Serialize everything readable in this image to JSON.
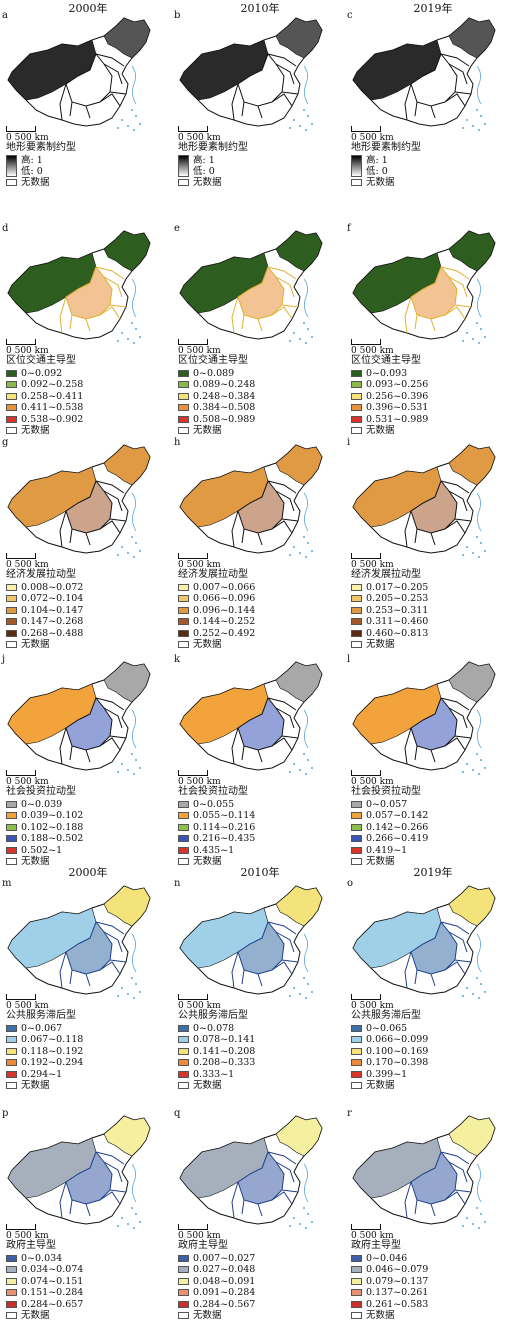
{
  "years": [
    "2000年",
    "2010年",
    "2019年"
  ],
  "map_scale": "0 500 km",
  "no_data": "无数据",
  "rows": [
    {
      "title": "地形要素制约型",
      "gradient": true,
      "high": "高: 1",
      "low": "低: 0",
      "panels": [
        {
          "letter": "a",
          "classes": []
        },
        {
          "letter": "b",
          "classes": []
        },
        {
          "letter": "c",
          "classes": []
        }
      ]
    },
    {
      "title": "区位交通主导型",
      "colors": [
        "#2e5e1f",
        "#8ab84a",
        "#f3e37a",
        "#e8913a",
        "#d7342a"
      ],
      "panels": [
        {
          "letter": "d",
          "classes": [
            "0~0.092",
            "0.092~0.258",
            "0.258~0.411",
            "0.411~0.538",
            "0.538~0.902"
          ]
        },
        {
          "letter": "e",
          "classes": [
            "0~0.089",
            "0.089~0.248",
            "0.248~0.384",
            "0.384~0.508",
            "0.508~0.989"
          ]
        },
        {
          "letter": "f",
          "classes": [
            "0~0.093",
            "0.093~0.256",
            "0.256~0.396",
            "0.396~0.531",
            "0.531~0.989"
          ]
        }
      ]
    },
    {
      "title": "经济发展拉动型",
      "colors": [
        "#f7f0a6",
        "#f2c66a",
        "#e09a43",
        "#a35a2b",
        "#5a2a12"
      ],
      "panels": [
        {
          "letter": "g",
          "classes": [
            "0.008~0.072",
            "0.072~0.104",
            "0.104~0.147",
            "0.147~0.268",
            "0.268~0.488"
          ]
        },
        {
          "letter": "h",
          "classes": [
            "0.007~0.066",
            "0.066~0.096",
            "0.096~0.144",
            "0.144~0.252",
            "0.252~0.492"
          ]
        },
        {
          "letter": "i",
          "classes": [
            "0.017~0.205",
            "0.205~0.253",
            "0.253~0.311",
            "0.311~0.460",
            "0.460~0.813"
          ]
        }
      ]
    },
    {
      "title": "社会投资拉动型",
      "colors": [
        "#a8a8a8",
        "#f2a33c",
        "#8cc04a",
        "#3a55b8",
        "#d7342a"
      ],
      "panels": [
        {
          "letter": "j",
          "classes": [
            "0~0.039",
            "0.039~0.102",
            "0.102~0.188",
            "0.188~0.502",
            "0.502~1"
          ]
        },
        {
          "letter": "k",
          "classes": [
            "0~0.055",
            "0.055~0.114",
            "0.114~0.216",
            "0.216~0.435",
            "0.435~1"
          ]
        },
        {
          "letter": "l",
          "classes": [
            "0~0.057",
            "0.057~0.142",
            "0.142~0.266",
            "0.266~0.419",
            "0.419~1"
          ]
        }
      ]
    },
    {
      "title": "公共服务滞后型",
      "colors": [
        "#3a6fa8",
        "#9fd0e8",
        "#f3e37a",
        "#ee8a3a",
        "#d7342a"
      ],
      "panels": [
        {
          "letter": "m",
          "classes": [
            "0~0.067",
            "0.067~0.118",
            "0.118~0.192",
            "0.192~0.294",
            "0.294~1"
          ]
        },
        {
          "letter": "n",
          "classes": [
            "0~0.078",
            "0.078~0.141",
            "0.141~0.208",
            "0.208~0.333",
            "0.333~1"
          ]
        },
        {
          "letter": "o",
          "classes": [
            "0~0.065",
            "0.066~0.099",
            "0.100~0.169",
            "0.170~0.398",
            "0.399~1"
          ]
        }
      ]
    },
    {
      "title": "政府主导型",
      "colors": [
        "#3e5fa8",
        "#a6b0bc",
        "#f5efa0",
        "#e89070",
        "#c9302c"
      ],
      "panels": [
        {
          "letter": "p",
          "classes": [
            "0~0.034",
            "0.034~0.074",
            "0.074~0.151",
            "0.151~0.284",
            "0.284~0.657"
          ]
        },
        {
          "letter": "q",
          "classes": [
            "0.007~0.027",
            "0.027~0.048",
            "0.048~0.091",
            "0.091~0.284",
            "0.284~0.567"
          ]
        },
        {
          "letter": "r",
          "classes": [
            "0~0.046",
            "0.046~0.079",
            "0.079~0.137",
            "0.137~0.261",
            "0.261~0.583"
          ]
        }
      ]
    }
  ]
}
